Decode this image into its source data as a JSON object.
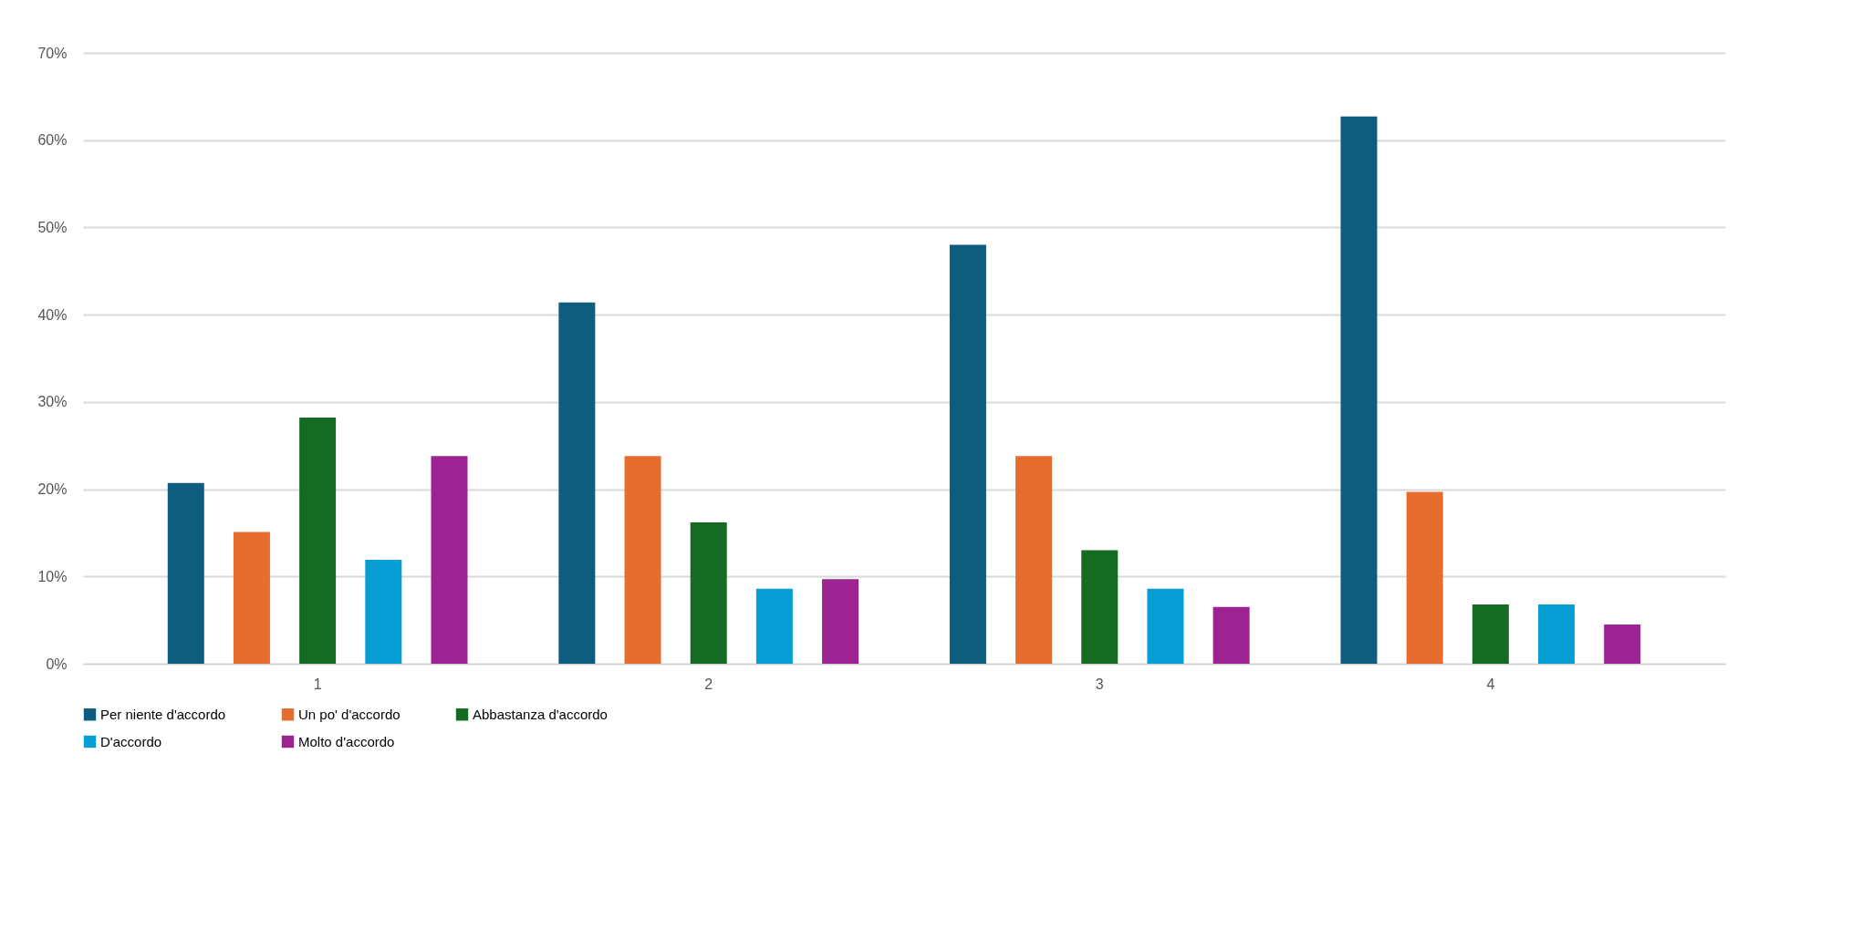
{
  "chart_data": {
    "type": "bar",
    "categories": [
      "1",
      "2",
      "3",
      "4"
    ],
    "series": [
      {
        "name": "Per niente d'accordo",
        "color": "#0e5c7e",
        "values": [
          20.7,
          41.4,
          48.0,
          62.7
        ]
      },
      {
        "name": "Un po' d'accordo",
        "color": "#e76d2f",
        "values": [
          15.1,
          23.8,
          23.8,
          19.7
        ]
      },
      {
        "name": "Abbastanza d'accordo",
        "color": "#156b22",
        "values": [
          28.2,
          16.2,
          13.0,
          6.8
        ]
      },
      {
        "name": "D'accordo",
        "color": "#069ed4",
        "values": [
          11.9,
          8.6,
          8.6,
          6.8
        ]
      },
      {
        "name": "Molto d'accordo",
        "color": "#9c2391",
        "values": [
          23.8,
          9.7,
          6.5,
          4.5
        ]
      }
    ],
    "ylim": [
      0,
      70
    ],
    "yticks": [
      {
        "value": 0,
        "label": "0%"
      },
      {
        "value": 10,
        "label": "10%"
      },
      {
        "value": 20,
        "label": "20%"
      },
      {
        "value": 30,
        "label": "30%"
      },
      {
        "value": 40,
        "label": "40%"
      },
      {
        "value": 50,
        "label": "50%"
      },
      {
        "value": 60,
        "label": "60%"
      },
      {
        "value": 70,
        "label": "70%"
      }
    ],
    "grid": "y",
    "legend": "bottom"
  }
}
